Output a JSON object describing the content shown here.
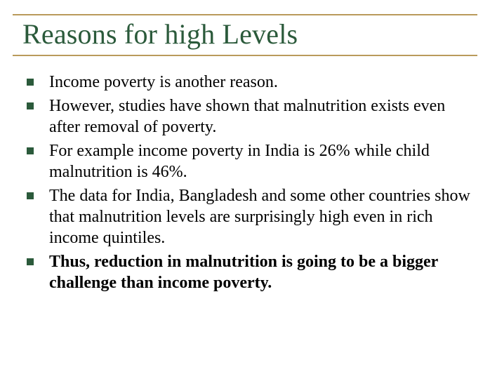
{
  "colors": {
    "title_text": "#2b5a3b",
    "rule": "#b99a5b",
    "bullet": "#2b5a3b",
    "body_text": "#000000",
    "background": "#ffffff"
  },
  "title": {
    "text": "Reasons for high Levels",
    "fontsize": 40
  },
  "body": {
    "fontsize": 24,
    "bullets": [
      {
        "text": "Income poverty is another reason.",
        "bold": false
      },
      {
        "text": "However, studies have shown that malnutrition exists even after removal of poverty.",
        "bold": false
      },
      {
        "text": "For example income poverty in India is 26% while child malnutrition is 46%.",
        "bold": false
      },
      {
        "text": "The data for India, Bangladesh and some other countries show that malnutrition levels are surprisingly high even in rich income quintiles.",
        "bold": false
      },
      {
        "text": "Thus, reduction in malnutrition is going to be a bigger challenge than income poverty.",
        "bold": true
      }
    ]
  }
}
